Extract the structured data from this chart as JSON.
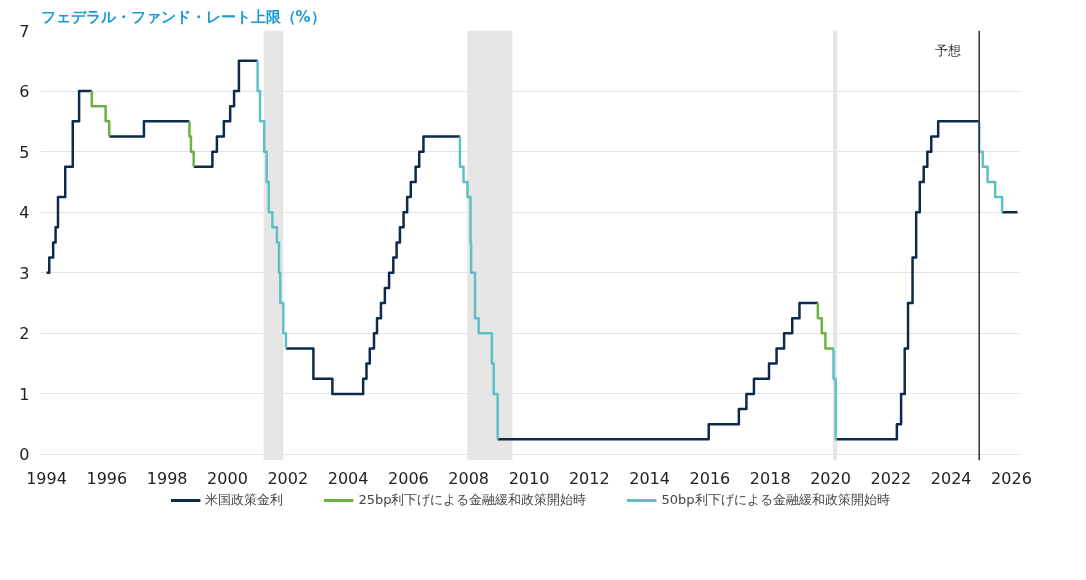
{
  "chart_data": {
    "type": "step",
    "title": "フェデラル・ファンド・レート上限（%）",
    "xlim": [
      1993.8,
      2026.3
    ],
    "ylim": [
      -0.1,
      7.0
    ],
    "xticks": [
      1994,
      1996,
      1998,
      2000,
      2002,
      2004,
      2006,
      2008,
      2010,
      2012,
      2014,
      2016,
      2018,
      2020,
      2022,
      2024,
      2026
    ],
    "yticks": [
      0,
      1,
      2,
      3,
      4,
      5,
      6,
      7
    ],
    "grid": "y",
    "legend": "bottom",
    "series": [
      {
        "name": "米国政策金利",
        "color": "#0c2a4c",
        "x": [
          1994.0,
          1994.09,
          1994.22,
          1994.3,
          1994.38,
          1994.62,
          1994.87,
          1995.08,
          1995.5,
          null,
          1996.08,
          1997.23,
          1998.74,
          null,
          1998.88,
          1999.5,
          1999.65,
          1999.88,
          2000.09,
          2000.22,
          2000.38,
          2001.0,
          null,
          2001.94,
          2002.85,
          2003.48,
          2004.5,
          2004.61,
          2004.72,
          2004.86,
          2004.96,
          2005.09,
          2005.22,
          2005.36,
          2005.5,
          2005.61,
          2005.72,
          2005.84,
          2005.96,
          2006.08,
          2006.24,
          2006.36,
          2006.5,
          2007.71,
          null,
          2008.96,
          2015.96,
          2016.96,
          2017.21,
          2017.46,
          2017.96,
          2018.21,
          2018.46,
          2018.73,
          2018.97,
          2019.58,
          null,
          2020.2,
          2022.2,
          2022.34,
          2022.46,
          2022.57,
          2022.72,
          2022.84,
          2022.96,
          2023.09,
          2023.21,
          2023.34,
          2023.57,
          2024.93,
          null,
          2025.69,
          2026.2
        ],
        "values": [
          3.0,
          3.25,
          3.5,
          3.75,
          4.25,
          4.75,
          5.5,
          6.0,
          6.0,
          null,
          5.25,
          5.5,
          5.5,
          null,
          4.75,
          5.0,
          5.25,
          5.5,
          5.75,
          6.0,
          6.5,
          6.5,
          null,
          1.75,
          1.25,
          1.0,
          1.25,
          1.5,
          1.75,
          2.0,
          2.25,
          2.5,
          2.75,
          3.0,
          3.25,
          3.5,
          3.75,
          4.0,
          4.25,
          4.5,
          4.75,
          5.0,
          5.25,
          5.25,
          null,
          0.25,
          0.5,
          0.75,
          1.0,
          1.25,
          1.5,
          1.75,
          2.0,
          2.25,
          2.5,
          2.5,
          null,
          0.25,
          0.5,
          1.0,
          1.75,
          2.5,
          3.25,
          4.0,
          4.5,
          4.75,
          5.0,
          5.25,
          5.5,
          5.5,
          null,
          4.0,
          4.0
        ]
      },
      {
        "name": "25bp利下げによる金融緩和政策開始時",
        "color": "#6ab344",
        "x": [
          1995.5,
          1995.5,
          1995.96,
          1996.08,
          null,
          1998.74,
          1998.74,
          1998.79,
          1998.88,
          null,
          2019.58,
          2019.58,
          2019.71,
          2019.83,
          2020.1
        ],
        "values": [
          6.0,
          5.75,
          5.5,
          5.25,
          null,
          5.5,
          5.25,
          5.0,
          4.75,
          null,
          2.5,
          2.25,
          2.0,
          1.75,
          1.75
        ]
      },
      {
        "name": "50bp利下げによる金融緩和政策開始時",
        "color": "#5fbfc6",
        "x": [
          2001.0,
          2001.0,
          2001.08,
          2001.22,
          2001.3,
          2001.37,
          2001.49,
          2001.64,
          2001.71,
          2001.75,
          2001.85,
          2001.94,
          null,
          2007.71,
          2007.71,
          2007.83,
          2007.96,
          2008.06,
          2008.08,
          2008.21,
          2008.33,
          2008.77,
          2008.83,
          2008.96,
          null,
          2020.1,
          2020.1,
          2020.17,
          2020.2,
          null,
          2024.93,
          2024.93,
          2025.05,
          2025.21,
          2025.46,
          2025.69
        ],
        "values": [
          6.5,
          6.0,
          5.5,
          5.0,
          4.5,
          4.0,
          3.75,
          3.5,
          3.0,
          2.5,
          2.0,
          1.75,
          null,
          5.25,
          4.75,
          4.5,
          4.25,
          3.5,
          3.0,
          2.25,
          2.0,
          1.5,
          1.0,
          0.25,
          null,
          1.75,
          1.25,
          0.25,
          0.25,
          null,
          5.5,
          5.0,
          4.75,
          4.5,
          4.25,
          4.0
        ]
      }
    ],
    "bands": [
      {
        "axis": "x",
        "from": 2001.2,
        "to": 2001.85,
        "color": "#e6e6e6"
      },
      {
        "axis": "x",
        "from": 2007.95,
        "to": 2009.45,
        "color": "#e6e6e6"
      },
      {
        "axis": "x",
        "from": 2020.08,
        "to": 2020.22,
        "color": "#e6e6e6"
      }
    ],
    "ref_lines": [
      {
        "axis": "x",
        "value": 2024.93,
        "label": "予想",
        "color": "#333333"
      }
    ]
  }
}
